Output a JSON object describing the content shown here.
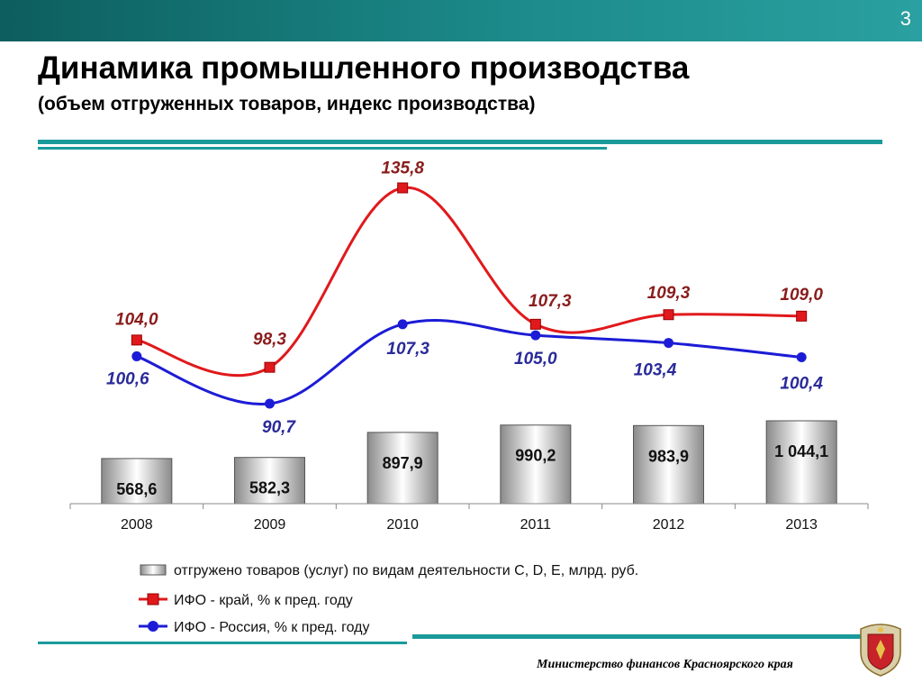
{
  "slide": {
    "number": "3",
    "title": "Динамика промышленного производства",
    "subtitle": "(объем отгруженных товаров, индекс производства)",
    "footer": "Министерство финансов Красноярского края"
  },
  "colors": {
    "header": "#1c8a8a",
    "rule": "#1b9a9a",
    "bar": "#9a9a9a",
    "region_line": "#e0191c",
    "russia_line": "#1c1cd6",
    "region_label": "#8a1c1c",
    "russia_label": "#2a2a9a"
  },
  "chart_data": {
    "type": "bar",
    "categories": [
      "2008",
      "2009",
      "2010",
      "2011",
      "2012",
      "2013"
    ],
    "series": [
      {
        "name": "отгружено товаров (услуг) по видам деятельности С, D, E, млрд. руб.",
        "type": "bar",
        "values": [
          568.6,
          582.3,
          897.9,
          990.2,
          983.9,
          1044.1
        ],
        "labels": [
          "568,6",
          "582,3",
          "897,9",
          "990,2",
          "983,9",
          "1 044,1"
        ]
      },
      {
        "name": "ИФО - край, % к пред. году",
        "type": "line",
        "marker": "square",
        "values": [
          104.0,
          98.3,
          135.8,
          107.3,
          109.3,
          109.0
        ],
        "labels": [
          "104,0",
          "98,3",
          "135,8",
          "107,3",
          "109,3",
          "109,0"
        ]
      },
      {
        "name": "ИФО - Россия, % к пред. году",
        "type": "line",
        "marker": "circle",
        "values": [
          100.6,
          90.7,
          107.3,
          105.0,
          103.4,
          100.4
        ],
        "labels": [
          "100,6",
          "90,7",
          "107,3",
          "105,0",
          "103,4",
          "100,4"
        ]
      }
    ],
    "legend_position": "bottom",
    "grid": false
  }
}
